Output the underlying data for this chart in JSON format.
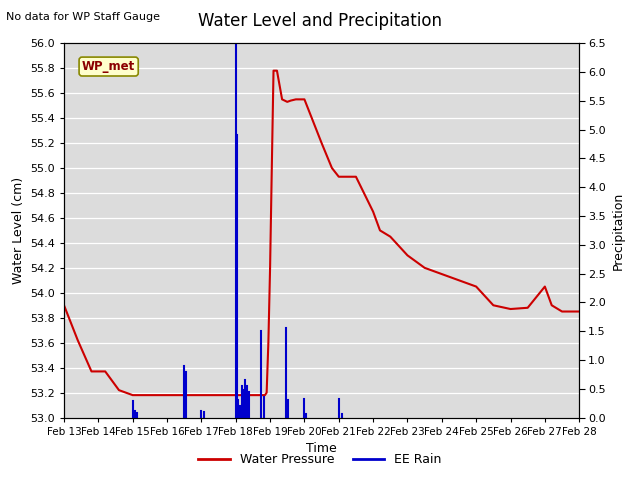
{
  "title": "Water Level and Precipitation",
  "subtitle": "No data for WP Staff Gauge",
  "xlabel": "Time",
  "ylabel_left": "Water Level (cm)",
  "ylabel_right": "Precipitation",
  "legend_label1": "Water Pressure",
  "legend_label2": "EE Rain",
  "wp_met_label": "WP_met",
  "plot_bg_color": "#dcdcdc",
  "water_pressure_color": "#cc0000",
  "rain_color": "#0000cc",
  "ylim_left": [
    53.0,
    56.0
  ],
  "ylim_right": [
    0.0,
    6.5
  ],
  "water_pressure_data": [
    [
      0.0,
      53.9
    ],
    [
      0.4,
      53.62
    ],
    [
      0.8,
      53.37
    ],
    [
      1.2,
      53.37
    ],
    [
      1.6,
      53.22
    ],
    [
      2.0,
      53.18
    ],
    [
      2.5,
      53.18
    ],
    [
      3.0,
      53.18
    ],
    [
      3.5,
      53.18
    ],
    [
      4.0,
      53.18
    ],
    [
      4.5,
      53.18
    ],
    [
      5.0,
      53.18
    ],
    [
      5.3,
      53.18
    ],
    [
      5.5,
      53.18
    ],
    [
      5.7,
      53.18
    ],
    [
      5.75,
      53.18
    ],
    [
      5.8,
      53.18
    ],
    [
      5.85,
      53.18
    ],
    [
      5.9,
      53.2
    ],
    [
      5.95,
      53.6
    ],
    [
      6.0,
      54.2
    ],
    [
      6.05,
      55.0
    ],
    [
      6.1,
      55.78
    ],
    [
      6.2,
      55.78
    ],
    [
      6.35,
      55.55
    ],
    [
      6.5,
      55.53
    ],
    [
      6.6,
      55.54
    ],
    [
      6.75,
      55.55
    ],
    [
      7.0,
      55.55
    ],
    [
      7.5,
      55.2
    ],
    [
      7.8,
      55.0
    ],
    [
      8.0,
      54.93
    ],
    [
      8.5,
      54.93
    ],
    [
      9.0,
      54.65
    ],
    [
      9.2,
      54.5
    ],
    [
      9.5,
      54.45
    ],
    [
      10.0,
      54.3
    ],
    [
      10.5,
      54.2
    ],
    [
      11.0,
      54.15
    ],
    [
      11.5,
      54.1
    ],
    [
      12.0,
      54.05
    ],
    [
      12.5,
      53.9
    ],
    [
      13.0,
      53.87
    ],
    [
      13.5,
      53.88
    ],
    [
      14.0,
      54.05
    ],
    [
      14.2,
      53.9
    ],
    [
      14.5,
      53.85
    ],
    [
      15.0,
      53.85
    ]
  ],
  "rain_spikes": [
    [
      2.0,
      0.28
    ],
    [
      2.08,
      0.12
    ],
    [
      2.12,
      0.08
    ],
    [
      3.5,
      0.9
    ],
    [
      3.56,
      0.8
    ],
    [
      4.0,
      0.12
    ],
    [
      4.08,
      0.1
    ],
    [
      5.0,
      6.5
    ],
    [
      5.03,
      4.9
    ],
    [
      5.08,
      0.3
    ],
    [
      5.12,
      0.2
    ],
    [
      5.18,
      0.55
    ],
    [
      5.22,
      0.48
    ],
    [
      5.28,
      0.65
    ],
    [
      5.32,
      0.55
    ],
    [
      5.38,
      0.45
    ],
    [
      5.75,
      1.5
    ],
    [
      5.82,
      0.35
    ],
    [
      6.45,
      1.55
    ],
    [
      6.52,
      0.3
    ],
    [
      7.0,
      0.32
    ],
    [
      7.06,
      0.07
    ],
    [
      8.02,
      0.32
    ],
    [
      8.08,
      0.07
    ]
  ],
  "x_ticks_days": [
    0,
    1,
    2,
    3,
    4,
    5,
    6,
    7,
    8,
    9,
    10,
    11,
    12,
    13,
    14,
    15
  ],
  "x_tick_labels": [
    "Feb 13",
    "Feb 14",
    "Feb 15",
    "Feb 16",
    "Feb 17",
    "Feb 18",
    "Feb 19",
    "Feb 20",
    "Feb 21",
    "Feb 22",
    "Feb 23",
    "Feb 24",
    "Feb 25",
    "Feb 26",
    "Feb 27",
    "Feb 28"
  ],
  "yticks_left": [
    53.0,
    53.2,
    53.4,
    53.6,
    53.8,
    54.0,
    54.2,
    54.4,
    54.6,
    54.8,
    55.0,
    55.2,
    55.4,
    55.6,
    55.8,
    56.0
  ],
  "yticks_right": [
    0.0,
    0.5,
    1.0,
    1.5,
    2.0,
    2.5,
    3.0,
    3.5,
    4.0,
    4.5,
    5.0,
    5.5,
    6.0,
    6.5
  ]
}
